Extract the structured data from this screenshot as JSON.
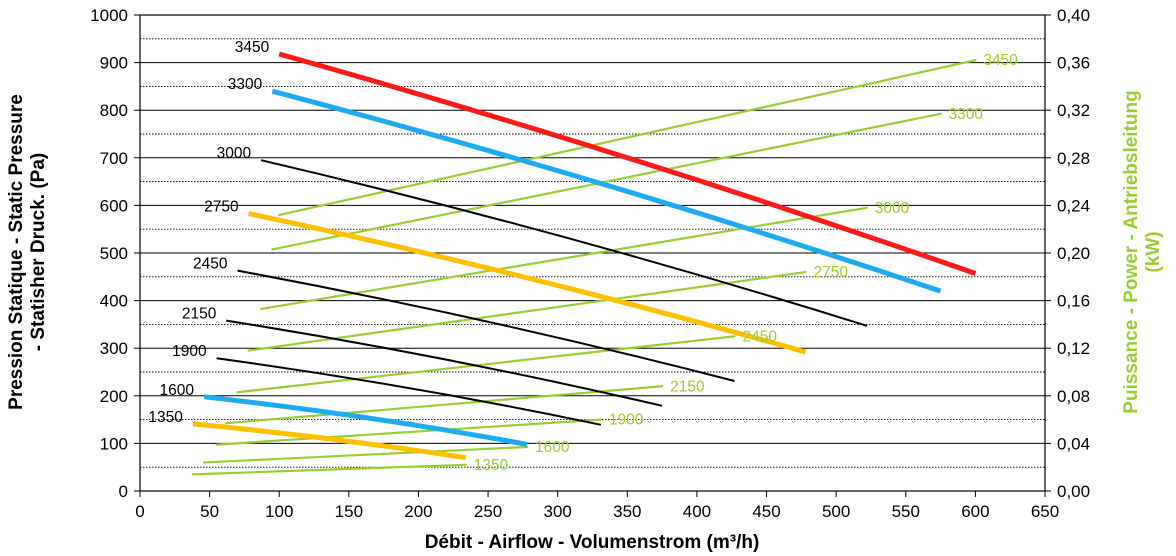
{
  "chart_data": {
    "type": "line",
    "xlabel": "Débit - Airflow - Volumenstrom (m³/h)",
    "ylabel_lines": [
      "Pression Statique - Static Pressure",
      "- Statisher Druck. (Pa)"
    ],
    "y2label_lines": [
      "Puissance - Power - Antriebsleitung",
      "(kW)"
    ],
    "xlim": [
      0,
      650
    ],
    "ylim": [
      0,
      1000
    ],
    "y2lim": [
      0,
      0.4
    ],
    "x_ticks": [
      0,
      50,
      100,
      150,
      200,
      250,
      300,
      350,
      400,
      450,
      500,
      550,
      600,
      650
    ],
    "x_tick_labels": [
      "0",
      "50",
      "100",
      "150",
      "200",
      "250",
      "300",
      "350",
      "400",
      "450",
      "500",
      "550",
      "600",
      "650"
    ],
    "y_ticks": [
      0,
      100,
      200,
      300,
      400,
      500,
      600,
      700,
      800,
      900,
      1000
    ],
    "y_tick_labels": [
      "0",
      "100",
      "200",
      "300",
      "400",
      "500",
      "600",
      "700",
      "800",
      "900",
      "1000"
    ],
    "y2_ticks": [
      0,
      0.04,
      0.08,
      0.12,
      0.16,
      0.2,
      0.24,
      0.28,
      0.32,
      0.36,
      0.4
    ],
    "y2_tick_labels": [
      "0,00",
      "0,04",
      "0,08",
      "0,12",
      "0,16",
      "0,20",
      "0,24",
      "0,28",
      "0,32",
      "0,36",
      "0,40"
    ],
    "grid": {
      "y_major": true,
      "y_minor_dotted": true,
      "x": false
    },
    "colors": {
      "red": "#ff1a1a",
      "blue": "#1eaaf1",
      "orange": "#ffc000",
      "black": "#000000",
      "green": "#9acd32"
    },
    "pressure_series": [
      {
        "name": "3450",
        "color": "red",
        "width": 5,
        "x": [
          100,
          600
        ],
        "y": [
          918,
          457
        ],
        "curv": 12
      },
      {
        "name": "3300",
        "color": "blue",
        "width": 5,
        "x": [
          95,
          575
        ],
        "y": [
          840,
          420
        ],
        "curv": 12
      },
      {
        "name": "3000",
        "color": "black",
        "width": 2,
        "x": [
          87,
          522
        ],
        "y": [
          695,
          347
        ],
        "curv": 12
      },
      {
        "name": "2750",
        "color": "orange",
        "width": 5,
        "x": [
          78,
          478
        ],
        "y": [
          583,
          292
        ],
        "curv": 10
      },
      {
        "name": "2450",
        "color": "black",
        "width": 2,
        "x": [
          70,
          427
        ],
        "y": [
          463,
          231
        ],
        "curv": 9
      },
      {
        "name": "2150",
        "color": "black",
        "width": 2,
        "x": [
          62,
          375
        ],
        "y": [
          358,
          179
        ],
        "curv": 8
      },
      {
        "name": "1900",
        "color": "black",
        "width": 2,
        "x": [
          55,
          331
        ],
        "y": [
          279,
          139
        ],
        "curv": 7
      },
      {
        "name": "1600",
        "color": "blue",
        "width": 5,
        "x": [
          46,
          278
        ],
        "y": [
          198,
          98
        ],
        "curv": 6
      },
      {
        "name": "1350",
        "color": "orange",
        "width": 5,
        "x": [
          38,
          234
        ],
        "y": [
          141,
          70
        ],
        "curv": 4
      }
    ],
    "power_series": [
      {
        "name": "3450",
        "x": [
          100,
          600
        ],
        "y2": [
          0.232,
          0.362
        ]
      },
      {
        "name": "3300",
        "x": [
          95,
          575
        ],
        "y2": [
          0.203,
          0.317
        ]
      },
      {
        "name": "3000",
        "x": [
          87,
          522
        ],
        "y2": [
          0.153,
          0.238
        ]
      },
      {
        "name": "2750",
        "x": [
          78,
          478
        ],
        "y2": [
          0.118,
          0.184
        ]
      },
      {
        "name": "2450",
        "x": [
          70,
          427
        ],
        "y2": [
          0.083,
          0.13
        ]
      },
      {
        "name": "2150",
        "x": [
          62,
          375
        ],
        "y2": [
          0.057,
          0.088
        ]
      },
      {
        "name": "1900",
        "x": [
          55,
          331
        ],
        "y2": [
          0.039,
          0.06
        ]
      },
      {
        "name": "1600",
        "x": [
          46,
          278
        ],
        "y2": [
          0.024,
          0.037
        ]
      },
      {
        "name": "1350",
        "x": [
          38,
          234
        ],
        "y2": [
          0.014,
          0.022
        ]
      }
    ]
  }
}
